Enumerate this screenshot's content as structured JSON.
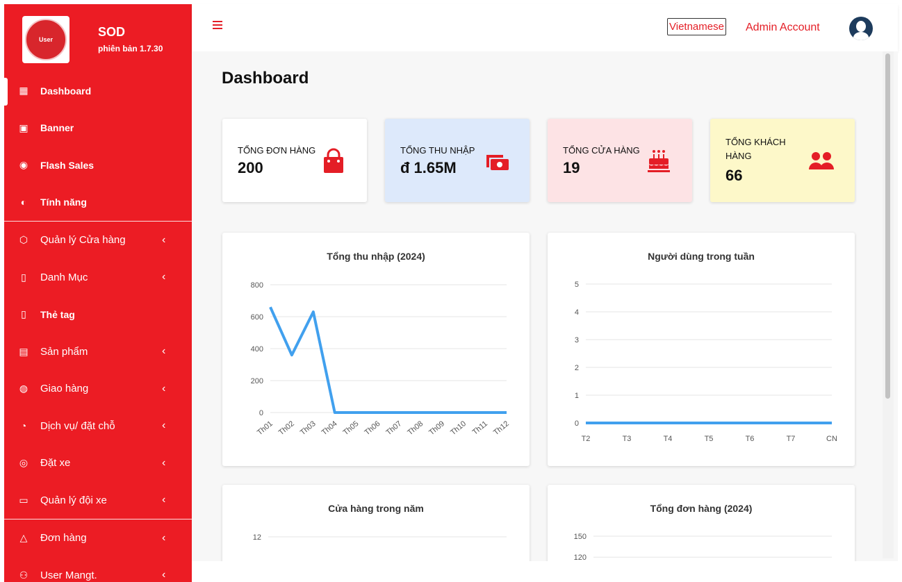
{
  "brand": {
    "name": "SOD",
    "version": "phiên bản 1.7.30",
    "logo_text": "User"
  },
  "sidebar": {
    "items": [
      {
        "label": "Dashboard",
        "icon": "dashboard-icon",
        "bold": true,
        "chevron": false,
        "active": true
      },
      {
        "label": "Banner",
        "icon": "image-icon",
        "bold": true,
        "chevron": false
      },
      {
        "label": "Flash Sales",
        "icon": "flash-icon",
        "bold": true,
        "chevron": false
      },
      {
        "label": "Tính năng",
        "icon": "feature-icon",
        "bold": true,
        "chevron": false
      },
      {
        "label": "Quản lý Cửa hàng",
        "icon": "store-icon",
        "bold": false,
        "chevron": true
      },
      {
        "label": "Danh Mục",
        "icon": "bookmark-icon",
        "bold": false,
        "chevron": true
      },
      {
        "label": "Thẻ tag",
        "icon": "tag-icon",
        "bold": true,
        "chevron": false
      },
      {
        "label": "Sản phẩm",
        "icon": "archive-icon",
        "bold": false,
        "chevron": true
      },
      {
        "label": "Giao hàng",
        "icon": "delivery-icon",
        "bold": false,
        "chevron": true
      },
      {
        "label": "Dịch vụ/ đặt chỗ",
        "icon": "service-icon",
        "bold": false,
        "chevron": true
      },
      {
        "label": "Đặt xe",
        "icon": "broadcast-icon",
        "bold": false,
        "chevron": true
      },
      {
        "label": "Quản lý đội xe",
        "icon": "briefcase-icon",
        "bold": false,
        "chevron": true
      },
      {
        "label": "Đơn hàng",
        "icon": "lock-bag-icon",
        "bold": false,
        "chevron": true
      },
      {
        "label": "User Mangt.",
        "icon": "users-icon",
        "bold": false,
        "chevron": true
      }
    ]
  },
  "header": {
    "language": "Vietnamese",
    "account": "Admin Account"
  },
  "main": {
    "title": "Dashboard",
    "stats": [
      {
        "label": "TỔNG ĐƠN HÀNG",
        "value": "200",
        "bg": "#ffffff",
        "icon": "shopping-bag-icon"
      },
      {
        "label": "TỔNG THU NHẬP",
        "value": "đ 1.65M",
        "bg": "#dde9fb",
        "icon": "money-icon"
      },
      {
        "label": "TỔNG CỬA HÀNG",
        "value": "19",
        "bg": "#fde3e5",
        "icon": "cake-icon"
      },
      {
        "label": "TỔNG KHÁCH HÀNG",
        "value": "66",
        "bg": "#fdf8c9",
        "icon": "users-icon"
      }
    ]
  },
  "colors": {
    "brand": "#ec1c24",
    "accent": "#e41e26",
    "line": "#41a0ee"
  },
  "chart_data": [
    {
      "type": "line",
      "title": "Tổng thu nhập (2024)",
      "categories": [
        "Th01",
        "Th02",
        "Th03",
        "Th04",
        "Th05",
        "Th06",
        "Th07",
        "Th08",
        "Th09",
        "Th10",
        "Th11",
        "Th12"
      ],
      "values": [
        660,
        360,
        630,
        0,
        0,
        0,
        0,
        0,
        0,
        0,
        0,
        0
      ],
      "yticks": [
        "800",
        "600",
        "400",
        "200",
        "0"
      ],
      "ylim": [
        0,
        800
      ]
    },
    {
      "type": "line",
      "title": "Người dùng trong tuần",
      "categories": [
        "T2",
        "T3",
        "T4",
        "T5",
        "T6",
        "T7",
        "CN"
      ],
      "values": [
        0,
        0,
        0,
        0,
        0,
        0,
        0
      ],
      "yticks": [
        "5",
        "4",
        "3",
        "2",
        "1",
        "0"
      ],
      "ylim": [
        0,
        5
      ]
    },
    {
      "type": "line",
      "title": "Cửa hàng trong năm",
      "yticks": [
        "12"
      ],
      "ylim": [
        0,
        12
      ]
    },
    {
      "type": "line",
      "title": "Tổng đơn hàng (2024)",
      "yticks": [
        "150",
        "120"
      ],
      "ylim": [
        0,
        150
      ]
    }
  ]
}
